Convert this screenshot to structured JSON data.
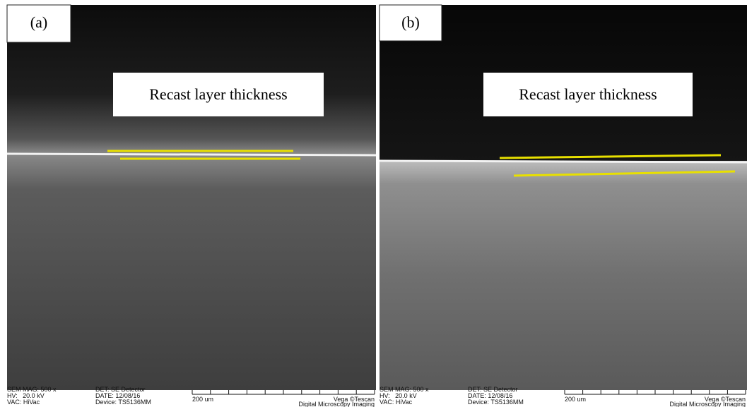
{
  "panels": [
    {
      "label": "(a)",
      "annotation": "Recast layer thickness",
      "info": {
        "mag": "SEM MAG: 500 x",
        "hv": "HV:   20.0 kV",
        "vac": "VAC: HiVac",
        "det": "DET: SE Detector",
        "date": "DATE: 12/08/16",
        "device": "Device: TS5136MM",
        "scale": "200 um",
        "brand": "Vega ©Tescan",
        "lab": "Digital Microscopy Imaging"
      }
    },
    {
      "label": "(b)",
      "annotation": "Recast layer thickness",
      "info": {
        "mag": "SEM MAG: 500 x",
        "hv": "HV:   20.0 kV",
        "vac": "VAC: HiVac",
        "det": "DET: SE Detector",
        "date": "DATE: 12/08/16",
        "device": "Device: TS5136MM",
        "scale": "200 um",
        "brand": "Vega ©Tescan",
        "lab": "Digital Microscopy Imaging"
      }
    }
  ]
}
